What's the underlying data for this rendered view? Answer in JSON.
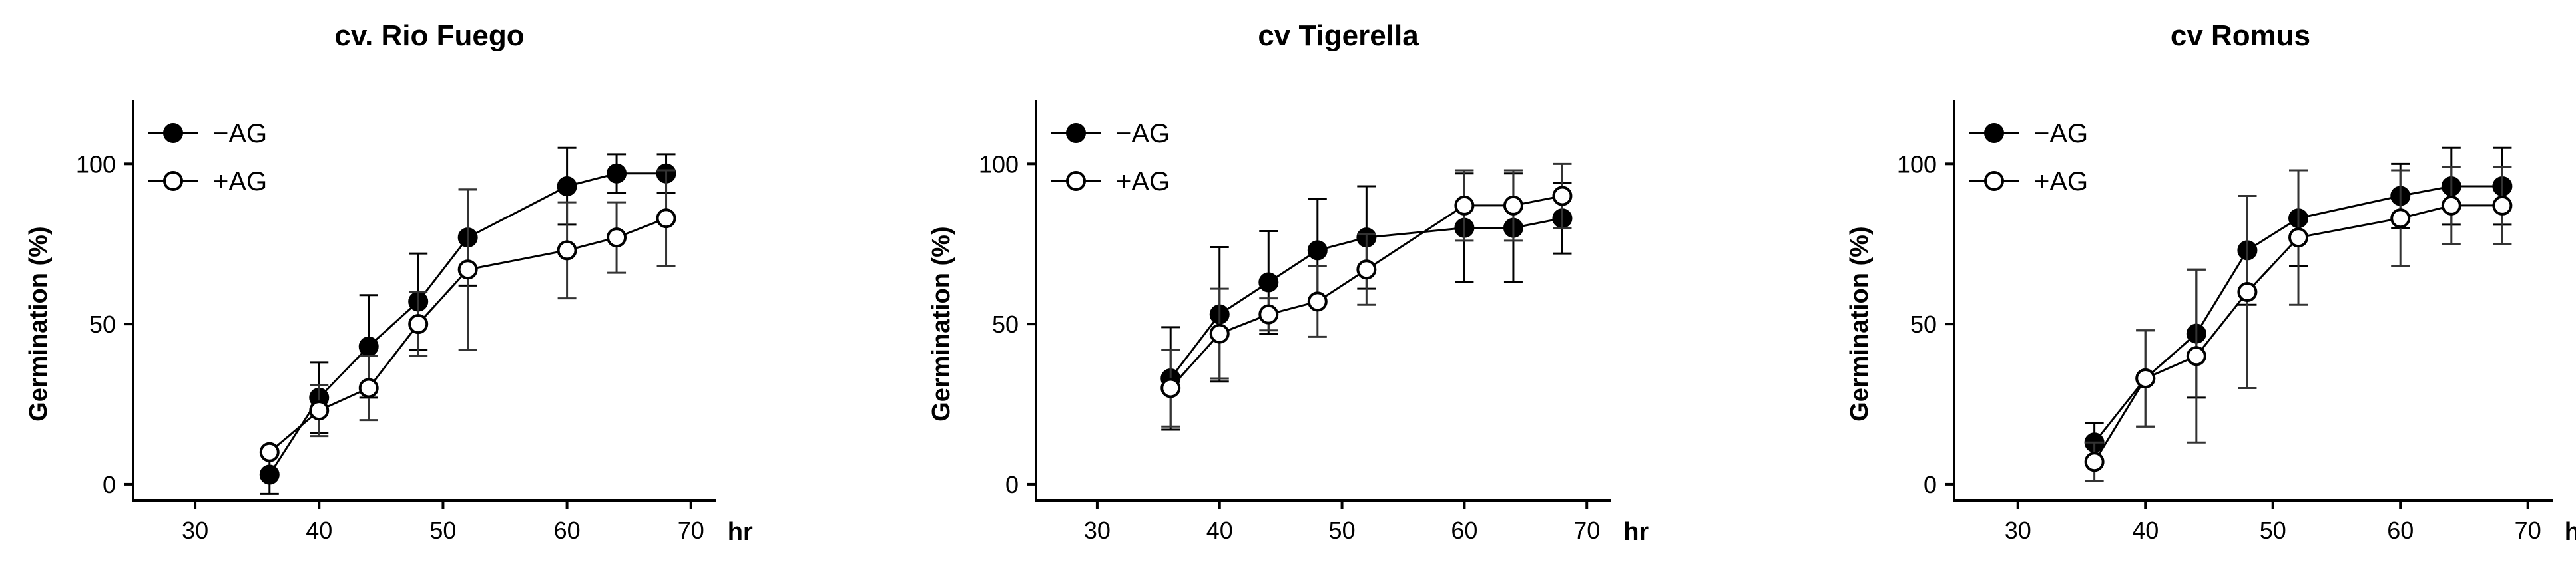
{
  "chart_data": [
    {
      "type": "line",
      "title": "cv. Rio Fuego",
      "xlabel": "hr",
      "ylabel": "Germination (%)",
      "xlim": [
        25,
        72
      ],
      "ylim": [
        -5,
        120
      ],
      "xticks": [
        30,
        40,
        50,
        60,
        70
      ],
      "yticks": [
        0,
        50,
        100
      ],
      "x": [
        36,
        40,
        44,
        48,
        52,
        60,
        64,
        68
      ],
      "series": [
        {
          "name": "−AG",
          "marker": "filled-circle",
          "values": [
            3,
            27,
            43,
            57,
            77,
            93,
            97,
            97
          ],
          "errors": [
            6,
            11,
            16,
            15,
            15,
            12,
            6,
            6
          ]
        },
        {
          "name": "+AG",
          "marker": "open-circle",
          "values": [
            10,
            23,
            30,
            50,
            67,
            73,
            77,
            83
          ],
          "errors": [
            0,
            8,
            10,
            10,
            25,
            15,
            11,
            15
          ]
        }
      ],
      "legend": "top-left"
    },
    {
      "type": "line",
      "title": "cv Tigerella",
      "xlabel": "hr",
      "ylabel": "Germination (%)",
      "xlim": [
        25,
        72
      ],
      "ylim": [
        -5,
        120
      ],
      "xticks": [
        30,
        40,
        50,
        60,
        70
      ],
      "yticks": [
        0,
        50,
        100
      ],
      "x": [
        36,
        40,
        44,
        48,
        52,
        60,
        64,
        68
      ],
      "series": [
        {
          "name": "−AG",
          "marker": "filled-circle",
          "values": [
            33,
            53,
            63,
            73,
            77,
            80,
            80,
            83
          ],
          "errors": [
            16,
            21,
            16,
            16,
            16,
            17,
            17,
            11
          ]
        },
        {
          "name": "+AG",
          "marker": "open-circle",
          "values": [
            30,
            47,
            53,
            57,
            67,
            87,
            87,
            90
          ],
          "errors": [
            12,
            14,
            5,
            11,
            11,
            11,
            11,
            10
          ]
        }
      ],
      "legend": "top-left"
    },
    {
      "type": "line",
      "title": "cv Romus",
      "xlabel": "hr",
      "ylabel": "Germination (%)",
      "xlim": [
        25,
        72
      ],
      "ylim": [
        -5,
        120
      ],
      "xticks": [
        30,
        40,
        50,
        60,
        70
      ],
      "yticks": [
        0,
        50,
        100
      ],
      "x": [
        36,
        40,
        44,
        48,
        52,
        60,
        64,
        68
      ],
      "series": [
        {
          "name": "−AG",
          "marker": "filled-circle",
          "values": [
            13,
            33,
            47,
            73,
            83,
            90,
            93,
            93
          ],
          "errors": [
            6,
            15,
            20,
            17,
            15,
            10,
            12,
            12
          ]
        },
        {
          "name": "+AG",
          "marker": "open-circle",
          "values": [
            7,
            33,
            40,
            60,
            77,
            83,
            87,
            87
          ],
          "errors": [
            6,
            15,
            27,
            30,
            21,
            15,
            12,
            12
          ]
        }
      ],
      "legend": "top-left"
    }
  ]
}
